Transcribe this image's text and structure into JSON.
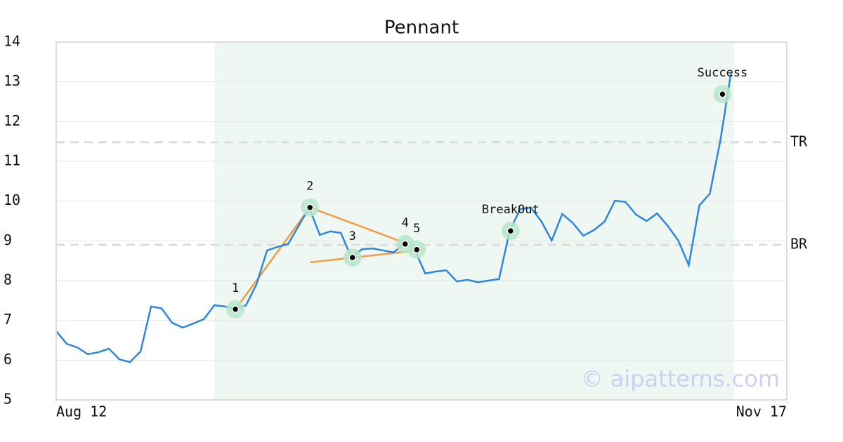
{
  "chart_data": {
    "type": "line",
    "title": "Pennant",
    "watermark": "© aipatterns.com",
    "color": "#2e86de",
    "x": [
      0,
      1,
      2,
      3,
      4,
      5,
      6,
      7,
      8,
      9,
      10,
      11,
      12,
      13,
      14,
      15,
      16,
      17,
      18,
      19,
      20,
      21,
      22,
      23,
      24,
      25,
      26,
      27,
      28,
      29,
      30,
      31,
      32,
      33,
      34,
      35,
      36,
      37,
      38,
      39,
      40,
      41,
      42,
      43,
      44,
      45,
      46,
      47,
      48,
      49,
      50,
      51,
      52,
      53,
      54,
      55,
      56,
      57,
      58,
      59,
      60,
      61,
      62,
      63,
      64
    ],
    "values": [
      6.73,
      6.41,
      6.32,
      6.15,
      6.2,
      6.29,
      6.02,
      5.95,
      6.22,
      7.35,
      7.3,
      6.94,
      6.82,
      6.92,
      7.03,
      7.38,
      7.35,
      7.28,
      7.38,
      7.91,
      8.76,
      8.85,
      8.92,
      9.38,
      9.84,
      9.15,
      9.24,
      9.2,
      8.58,
      8.79,
      8.81,
      8.76,
      8.71,
      8.92,
      8.78,
      8.18,
      8.23,
      8.26,
      7.98,
      8.02,
      7.96,
      8.0,
      8.04,
      9.24,
      9.8,
      9.84,
      9.5,
      9.01,
      9.68,
      9.45,
      9.13,
      9.27,
      9.48,
      10.01,
      9.98,
      9.66,
      9.5,
      9.69,
      9.38,
      9.01,
      8.39,
      9.89,
      10.19,
      11.53,
      13.21
    ],
    "xlim": [
      0,
      69.3
    ],
    "xticks": [
      {
        "value": 0,
        "label": "Aug 12"
      },
      {
        "value": 69.3,
        "label": "Nov 17"
      }
    ],
    "ylim": [
      5,
      14
    ],
    "yticks": [
      5,
      6,
      7,
      8,
      9,
      10,
      11,
      12,
      13,
      14
    ],
    "grid": true,
    "highlight": [
      15,
      64.3
    ],
    "levels": [
      {
        "label": "TR",
        "value": 11.48
      },
      {
        "label": "BR",
        "value": 8.9
      }
    ],
    "trend_color": "#f39c45",
    "trend_lines": [
      {
        "x": [
          17,
          24.07
        ],
        "y": [
          7.28,
          9.84
        ]
      },
      {
        "x": [
          24.07,
          35
        ],
        "y": [
          9.84,
          8.76
        ]
      },
      {
        "x": [
          24.07,
          35
        ],
        "y": [
          8.46,
          8.78
        ]
      }
    ],
    "annotations": [
      {
        "label": "1",
        "x": 17,
        "y": 7.28
      },
      {
        "label": "2",
        "x": 24.07,
        "y": 9.84
      },
      {
        "label": "3",
        "x": 28.1,
        "y": 8.58
      },
      {
        "label": "4",
        "x": 33.1,
        "y": 8.92
      },
      {
        "label": "5",
        "x": 34.2,
        "y": 8.78
      },
      {
        "label": "BreakOut",
        "x": 43.1,
        "y": 9.25
      },
      {
        "label": "Success",
        "x": 63.2,
        "y": 12.69
      }
    ]
  }
}
